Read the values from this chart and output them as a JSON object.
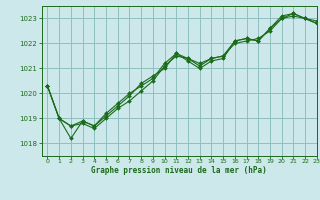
{
  "title": "Graphe pression niveau de la mer (hPa)",
  "bg_color": "#cce8ea",
  "grid_color": "#90bfc0",
  "line_color": "#1a6b1a",
  "xlim": [
    -0.5,
    23
  ],
  "ylim": [
    1017.5,
    1023.5
  ],
  "yticks": [
    1018,
    1019,
    1020,
    1021,
    1022,
    1023
  ],
  "xticks": [
    0,
    1,
    2,
    3,
    4,
    5,
    6,
    7,
    8,
    9,
    10,
    11,
    12,
    13,
    14,
    15,
    16,
    17,
    18,
    19,
    20,
    21,
    22,
    23
  ],
  "series": [
    [
      1020.3,
      1019.0,
      1018.2,
      1018.9,
      1018.7,
      1019.1,
      1019.5,
      1019.9,
      1020.4,
      1020.7,
      1021.0,
      1021.6,
      1021.3,
      1021.0,
      1021.3,
      1021.4,
      1022.1,
      1022.2,
      1022.1,
      1022.6,
      1023.1,
      1023.2,
      1023.0,
      1022.9
    ],
    [
      1020.3,
      1019.0,
      1018.7,
      1018.8,
      1018.6,
      1019.0,
      1019.4,
      1019.7,
      1020.1,
      1020.5,
      1021.1,
      1021.5,
      1021.4,
      1021.2,
      1021.4,
      1021.5,
      1022.0,
      1022.1,
      1022.2,
      1022.5,
      1023.0,
      1023.1,
      1023.0,
      1022.8
    ],
    [
      1020.3,
      1019.0,
      1018.7,
      1018.9,
      1018.7,
      1019.2,
      1019.6,
      1020.0,
      1020.3,
      1020.6,
      1021.2,
      1021.6,
      1021.4,
      1021.1,
      1021.4,
      1021.5,
      1022.1,
      1022.2,
      1022.1,
      1022.6,
      1023.0,
      1023.2,
      1023.0,
      1022.8
    ]
  ]
}
